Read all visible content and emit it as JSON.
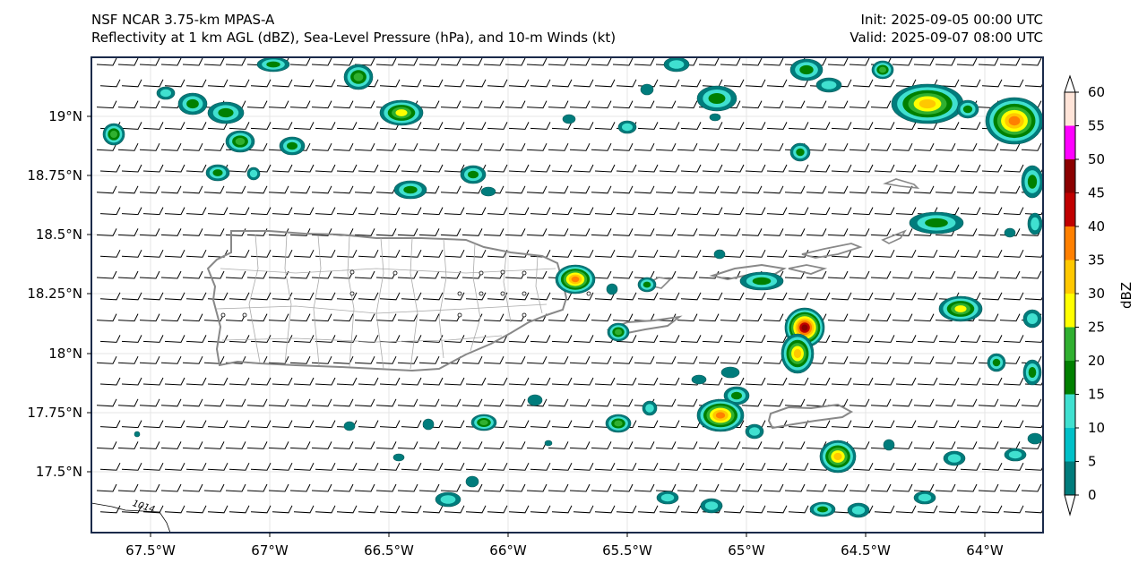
{
  "header": {
    "left_line1": "NSF NCAR 3.75-km MPAS-A",
    "left_line2": "Reflectivity at 1 km AGL (dBZ), Sea-Level Pressure (hPa), and 10-m Winds (kt)",
    "right_line1": "Init: 2025-09-05 00:00 UTC",
    "right_line2": "Valid: 2025-09-07 08:00 UTC"
  },
  "map": {
    "lon_ticks": [
      "67.5°W",
      "67°W",
      "66.5°W",
      "66°W",
      "65.5°W",
      "65°W",
      "64.5°W",
      "64°W"
    ],
    "lat_ticks": [
      "19°N",
      "18.75°N",
      "18.5°N",
      "18.25°N",
      "18°N",
      "17.75°N",
      "17.5°N"
    ],
    "isobar_label": "1014"
  },
  "colorbar": {
    "label": "dBZ",
    "ticks": [
      "0",
      "5",
      "10",
      "15",
      "20",
      "25",
      "30",
      "35",
      "40",
      "45",
      "50",
      "55",
      "60"
    ],
    "colors": [
      "#007c7c",
      "#00c0c8",
      "#40e0d0",
      "#008000",
      "#30b030",
      "#ffff00",
      "#ffc800",
      "#ff8000",
      "#c00000",
      "#8b0000",
      "#ff00ff",
      "#ffe4d8"
    ]
  }
}
